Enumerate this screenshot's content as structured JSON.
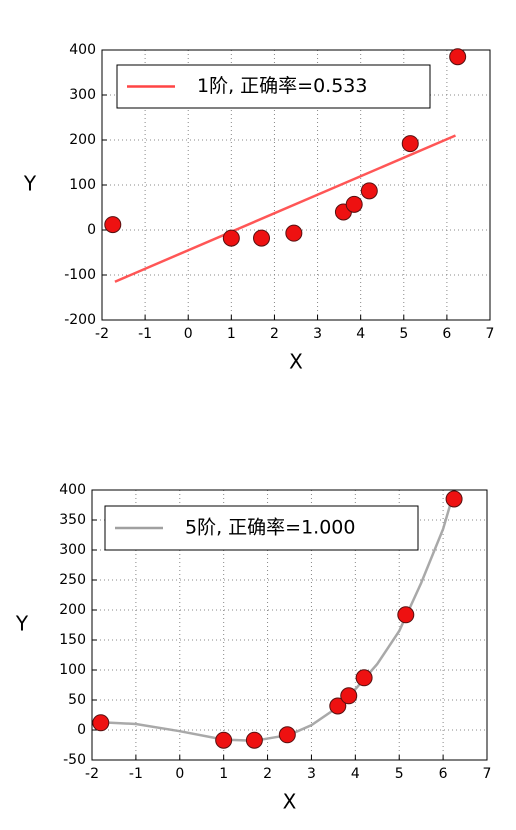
{
  "chart_data": [
    {
      "type": "scatter",
      "xlabel": "X",
      "ylabel": "Y",
      "xlim": [
        -2,
        7
      ],
      "xticks": [
        -2,
        -1,
        0,
        1,
        2,
        3,
        4,
        5,
        6,
        7
      ],
      "ylim": [
        -200,
        400
      ],
      "yticks": [
        -200,
        -100,
        0,
        100,
        200,
        300,
        400
      ],
      "grid": true,
      "legend": "upper left",
      "series": [
        {
          "name": "1阶, 正确率=0.533",
          "type": "line",
          "color": "#ff4444",
          "x": [
            -1.7,
            6.2
          ],
          "values": [
            -115,
            210
          ]
        },
        {
          "type": "scatter",
          "color": "#ee1111",
          "x": [
            -1.75,
            1.0,
            1.7,
            2.45,
            3.6,
            3.85,
            4.2,
            5.15,
            6.25
          ],
          "values": [
            12,
            -18,
            -18,
            -7,
            40,
            57,
            87,
            192,
            385
          ]
        }
      ]
    },
    {
      "type": "scatter",
      "xlabel": "X",
      "ylabel": "Y",
      "xlim": [
        -2,
        7
      ],
      "xticks": [
        -2,
        -1,
        0,
        1,
        2,
        3,
        4,
        5,
        6,
        7
      ],
      "ylim": [
        -50,
        400
      ],
      "yticks": [
        -50,
        0,
        50,
        100,
        150,
        200,
        250,
        300,
        350,
        400
      ],
      "grid": true,
      "legend": "upper left",
      "series": [
        {
          "name": "5阶, 正确率=1.000",
          "type": "line",
          "color": "#a0a0a0",
          "x": [
            -1.8,
            -1,
            0,
            1,
            1.7,
            2.5,
            3,
            3.5,
            4,
            4.5,
            5,
            5.5,
            6,
            6.2
          ],
          "values": [
            13,
            10,
            -2,
            -16,
            -18,
            -8,
            8,
            33,
            68,
            110,
            165,
            245,
            335,
            385
          ]
        },
        {
          "type": "scatter",
          "color": "#ee1111",
          "x": [
            -1.8,
            1.0,
            1.7,
            2.45,
            3.6,
            3.85,
            4.2,
            5.15,
            6.25
          ],
          "values": [
            12,
            -17,
            -17,
            -8,
            40,
            57,
            87,
            192,
            385
          ]
        }
      ]
    }
  ]
}
